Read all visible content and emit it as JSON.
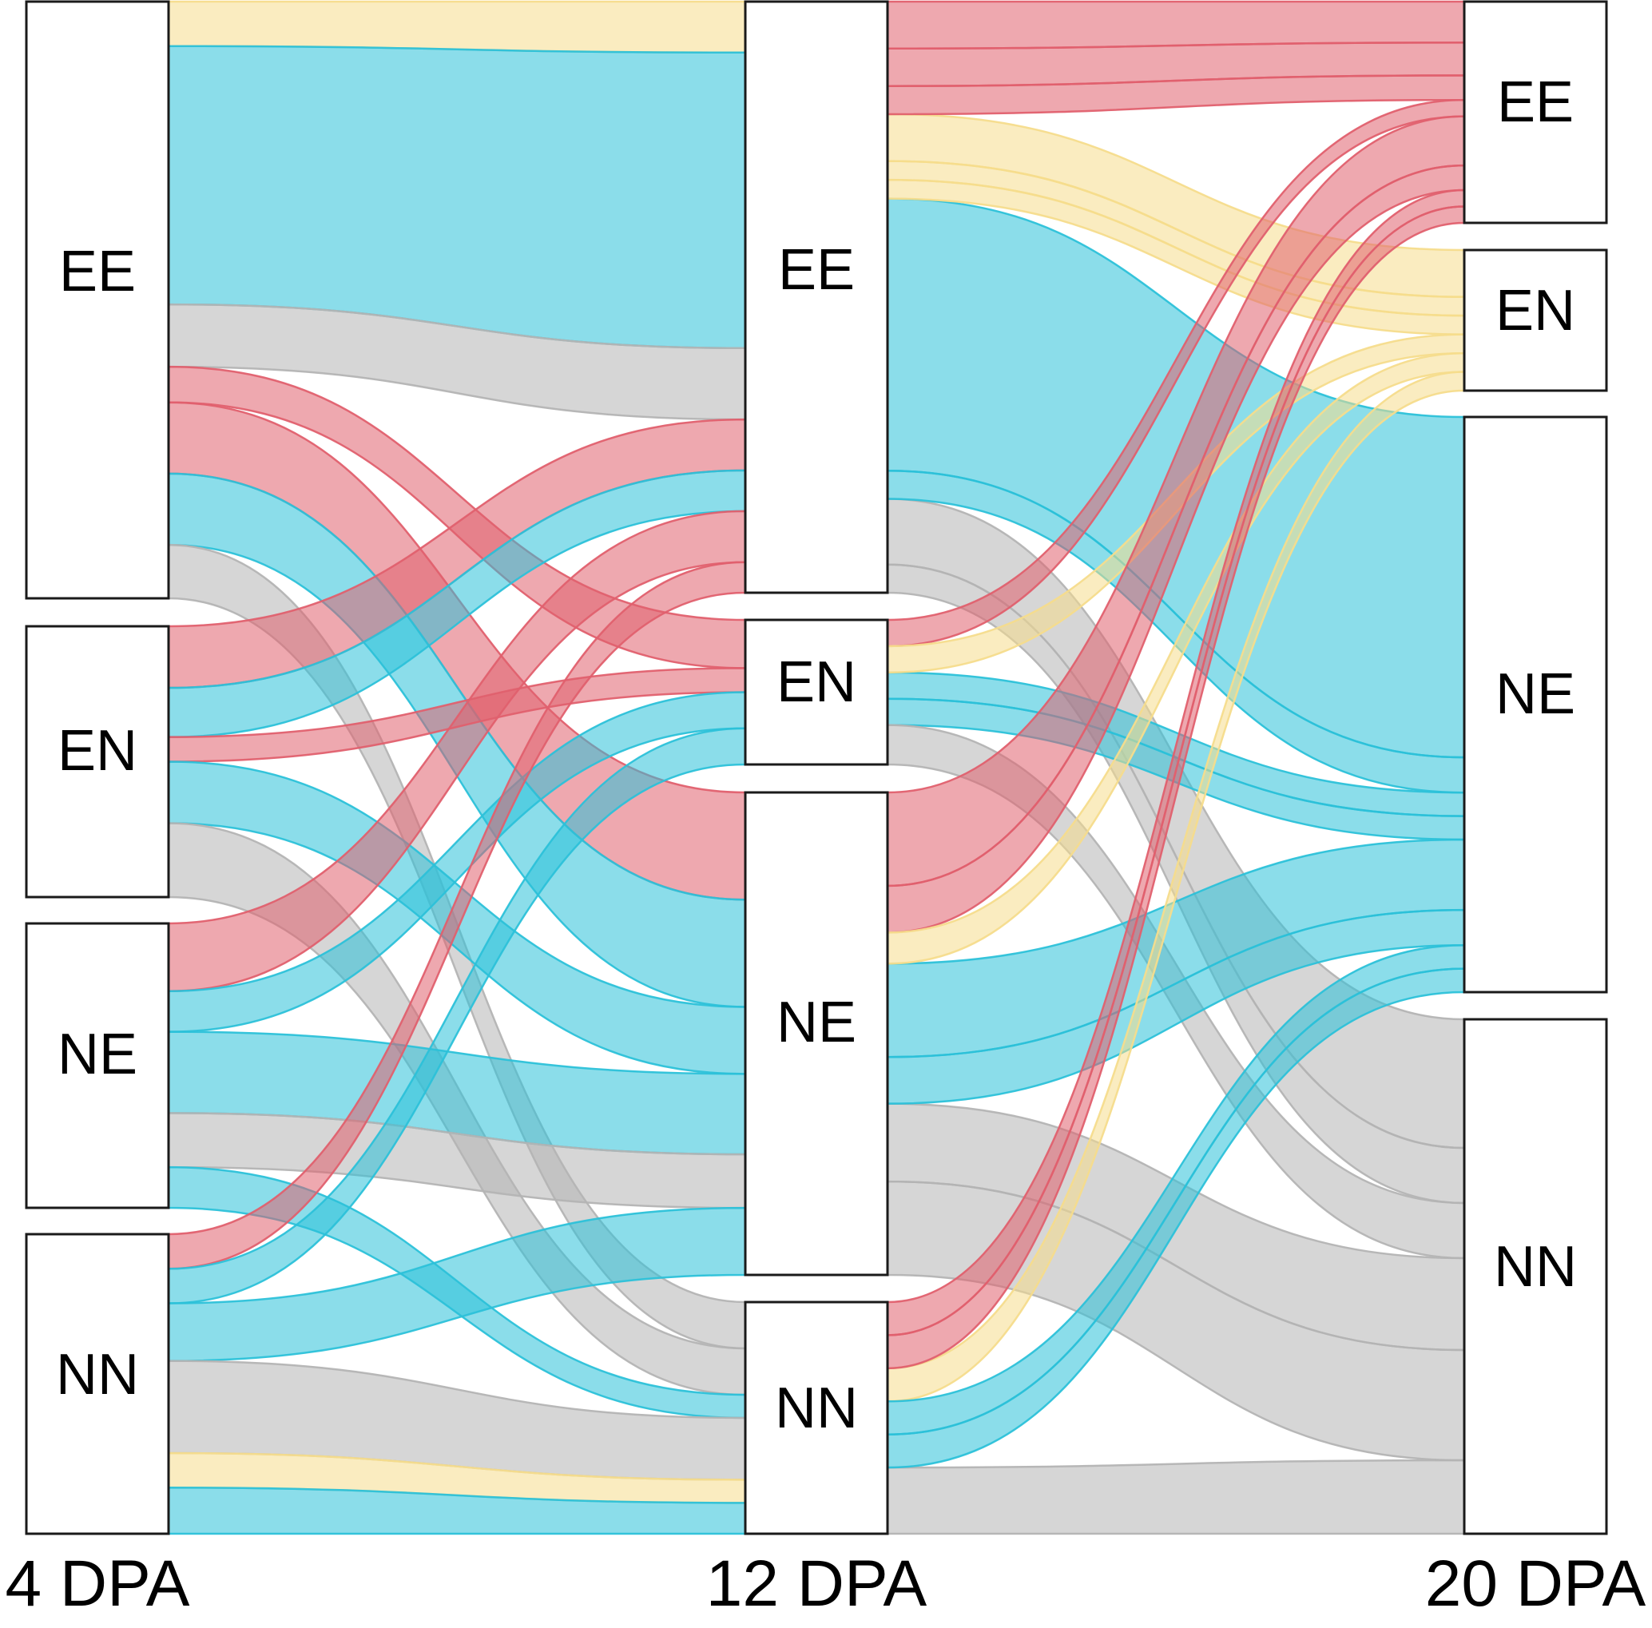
{
  "colors": {
    "EE": "#e0606e",
    "EN": "#f5dc8c",
    "NE": "#2cc1d9",
    "NN": "#b4b4b4"
  },
  "stages": [
    {
      "label": "4 DPA",
      "nodes": [
        "EE",
        "EN",
        "NE",
        "NN"
      ]
    },
    {
      "label": "12 DPA",
      "nodes": [
        "EE",
        "EN",
        "NE",
        "NN"
      ]
    },
    {
      "label": "20 DPA",
      "nodes": [
        "EE",
        "EN",
        "NE",
        "NN"
      ]
    }
  ],
  "flows_4_to_12": [
    {
      "from": "EE",
      "to": "EE",
      "category": "EN",
      "value": 5
    },
    {
      "from": "EE",
      "to": "EE",
      "category": "NE",
      "value": 29
    },
    {
      "from": "EE",
      "to": "EE",
      "category": "NN",
      "value": 7
    },
    {
      "from": "EE",
      "to": "EN",
      "category": "EE",
      "value": 4
    },
    {
      "from": "EE",
      "to": "NE",
      "category": "EE",
      "value": 8
    },
    {
      "from": "EE",
      "to": "NE",
      "category": "NE",
      "value": 8
    },
    {
      "from": "EE",
      "to": "NN",
      "category": "NN",
      "value": 6
    },
    {
      "from": "EN",
      "to": "EE",
      "category": "EE",
      "value": 5
    },
    {
      "from": "EN",
      "to": "EE",
      "category": "NE",
      "value": 4
    },
    {
      "from": "EN",
      "to": "EN",
      "category": "EE",
      "value": 2
    },
    {
      "from": "EN",
      "to": "NE",
      "category": "NE",
      "value": 5
    },
    {
      "from": "EN",
      "to": "NN",
      "category": "NN",
      "value": 6
    },
    {
      "from": "NE",
      "to": "EE",
      "category": "EE",
      "value": 5
    },
    {
      "from": "NE",
      "to": "EN",
      "category": "NE",
      "value": 3
    },
    {
      "from": "NE",
      "to": "NE",
      "category": "NE",
      "value": 6
    },
    {
      "from": "NE",
      "to": "NE",
      "category": "NN",
      "value": 4
    },
    {
      "from": "NE",
      "to": "NN",
      "category": "NE",
      "value": 3
    },
    {
      "from": "NN",
      "to": "EE",
      "category": "EE",
      "value": 3
    },
    {
      "from": "NN",
      "to": "EN",
      "category": "NE",
      "value": 3
    },
    {
      "from": "NN",
      "to": "NE",
      "category": "NE",
      "value": 5
    },
    {
      "from": "NN",
      "to": "NN",
      "category": "NN",
      "value": 8
    },
    {
      "from": "NN",
      "to": "NN",
      "category": "EN",
      "value": 3
    },
    {
      "from": "NN",
      "to": "NN",
      "category": "NE",
      "value": 4
    }
  ],
  "flows_12_to_20": [
    {
      "from": "EE",
      "to": "EN",
      "category": "EN",
      "value": 5
    },
    {
      "from": "EE",
      "to": "NE",
      "category": "NE",
      "value": 29
    },
    {
      "from": "EE",
      "to": "NN",
      "category": "NN",
      "value": 7
    },
    {
      "from": "EE",
      "to": "EE",
      "category": "EE",
      "value": 5
    },
    {
      "from": "EE",
      "to": "EE",
      "category": "EE",
      "value": 4
    },
    {
      "from": "EE",
      "to": "NE",
      "category": "NE",
      "value": 3
    },
    {
      "from": "EE",
      "to": "EN",
      "category": "EN",
      "value": 2
    },
    {
      "from": "EE",
      "to": "EE",
      "category": "EE",
      "value": 3
    },
    {
      "from": "EE",
      "to": "NN",
      "category": "NN",
      "value": 3
    },
    {
      "from": "EE",
      "to": "EN",
      "category": "EN",
      "value": 2
    },
    {
      "from": "EN",
      "to": "NE",
      "category": "NE",
      "value": 2
    },
    {
      "from": "EN",
      "to": "EE",
      "category": "EE",
      "value": 2
    },
    {
      "from": "EN",
      "to": "NE",
      "category": "NE",
      "value": 2
    },
    {
      "from": "EN",
      "to": "EN",
      "category": "EN",
      "value": 2
    },
    {
      "from": "EN",
      "to": "NN",
      "category": "NN",
      "value": 3
    },
    {
      "from": "NE",
      "to": "EE",
      "category": "EE",
      "value": 6
    },
    {
      "from": "NE",
      "to": "NE",
      "category": "NE",
      "value": 6
    },
    {
      "from": "NE",
      "to": "NN",
      "category": "NN",
      "value": 5
    },
    {
      "from": "NE",
      "to": "EE",
      "category": "EE",
      "value": 3
    },
    {
      "from": "NE",
      "to": "NE",
      "category": "NE",
      "value": 3
    },
    {
      "from": "NE",
      "to": "EN",
      "category": "EN",
      "value": 2
    },
    {
      "from": "NE",
      "to": "NN",
      "category": "NN",
      "value": 6
    },
    {
      "from": "NN",
      "to": "EE",
      "category": "EE",
      "value": 2
    },
    {
      "from": "NN",
      "to": "EN",
      "category": "EN",
      "value": 2
    },
    {
      "from": "NN",
      "to": "NE",
      "category": "NE",
      "value": 2
    },
    {
      "from": "NN",
      "to": "NN",
      "category": "NN",
      "value": 4
    },
    {
      "from": "NN",
      "to": "EE",
      "category": "EE",
      "value": 2
    },
    {
      "from": "NN",
      "to": "NE",
      "category": "NE",
      "value": 2
    }
  ]
}
